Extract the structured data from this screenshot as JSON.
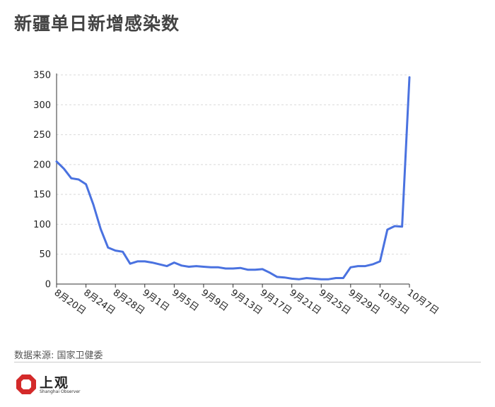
{
  "title": "新疆单日新增感染数",
  "source": "数据来源: 国家卫健委",
  "logo": {
    "cn": "上观",
    "en": "Shanghai Observer"
  },
  "colors": {
    "line": "#4a72e0",
    "grid": "#d9d9d9",
    "axis": "#333333",
    "logo_red": "#d42a2a"
  },
  "chart_data": {
    "type": "line",
    "title": "新疆单日新增感染数",
    "xlabel": "",
    "ylabel": "",
    "ylim": [
      0,
      350
    ],
    "yticks": [
      0,
      50,
      100,
      150,
      200,
      250,
      300,
      350
    ],
    "grid": true,
    "x_tick_labels": [
      "8月20日",
      "8月24日",
      "8月28日",
      "9月1日",
      "9月5日",
      "9月9日",
      "9月13日",
      "9月17日",
      "9月21日",
      "9月25日",
      "9月29日",
      "10月3日",
      "10月7日"
    ],
    "x": [
      "8月20日",
      "8月21日",
      "8月22日",
      "8月23日",
      "8月24日",
      "8月25日",
      "8月26日",
      "8月27日",
      "8月28日",
      "8月29日",
      "8月30日",
      "8月31日",
      "9月1日",
      "9月2日",
      "9月3日",
      "9月4日",
      "9月5日",
      "9月6日",
      "9月7日",
      "9月8日",
      "9月9日",
      "9月10日",
      "9月11日",
      "9月12日",
      "9月13日",
      "9月14日",
      "9月15日",
      "9月16日",
      "9月17日",
      "9月18日",
      "9月19日",
      "9月20日",
      "9月21日",
      "9月22日",
      "9月23日",
      "9月24日",
      "9月25日",
      "9月26日",
      "9月27日",
      "9月28日",
      "9月29日",
      "9月30日",
      "10月1日",
      "10月2日",
      "10月3日",
      "10月4日",
      "10月5日",
      "10月6日",
      "10月7日"
    ],
    "series": [
      {
        "values": [
          205,
          193,
          177,
          175,
          167,
          133,
          92,
          61,
          56,
          54,
          34,
          38,
          38,
          36,
          33,
          30,
          36,
          31,
          29,
          30,
          29,
          28,
          28,
          26,
          26,
          27,
          24,
          24,
          25,
          19,
          12,
          11,
          9,
          8,
          10,
          9,
          8,
          8,
          10,
          10,
          28,
          30,
          30,
          33,
          38,
          91,
          97,
          96,
          346
        ]
      }
    ]
  }
}
